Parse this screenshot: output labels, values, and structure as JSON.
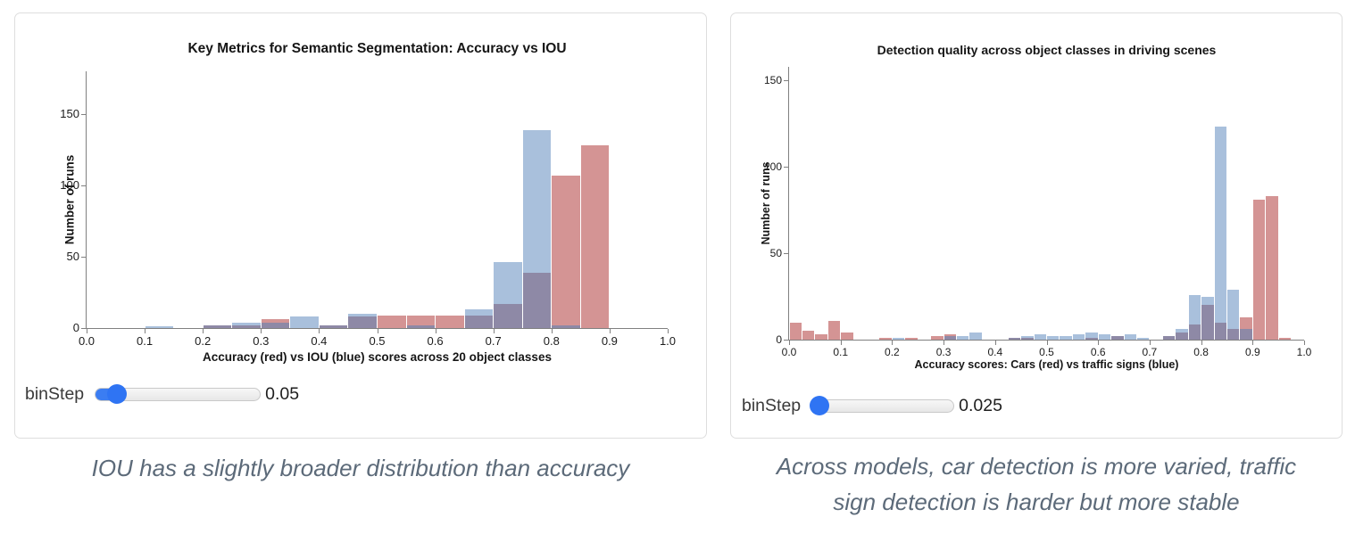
{
  "panels": [
    {
      "slider": {
        "label": "binStep",
        "value": "0.05",
        "fraction": 0.13
      },
      "caption_lines": {
        "0": "IOU has a slightly broader distribution than accuracy"
      }
    },
    {
      "slider": {
        "label": "binStep",
        "value": "0.025",
        "fraction": 0.05
      },
      "caption_lines": {
        "0": "Across models, car detection is more varied, traffic",
        "1": "sign detection is harder but more stable"
      }
    }
  ],
  "chart_data": [
    {
      "type": "histogram",
      "title": "Key Metrics for Semantic Segmentation: Accuracy vs IOU",
      "xlabel": "Accuracy (red) vs IOU (blue) scores across 20 object classes",
      "ylabel": "Number of runs",
      "bin_step": 0.05,
      "xlim": [
        0.0,
        1.0
      ],
      "ylim": [
        0,
        180
      ],
      "xticks": [
        0.0,
        0.1,
        0.2,
        0.3,
        0.4,
        0.5,
        0.6,
        0.7,
        0.8,
        0.9,
        1.0
      ],
      "yticks": [
        0,
        50,
        100,
        150
      ],
      "grid": false,
      "legend": "none",
      "overlap_color": "#8e89a6",
      "series": [
        {
          "name": "Accuracy",
          "color": "#d49494",
          "bins": [
            [
              0.2,
              2
            ],
            [
              0.25,
              2
            ],
            [
              0.3,
              6
            ],
            [
              0.4,
              2
            ],
            [
              0.45,
              8
            ],
            [
              0.5,
              9
            ],
            [
              0.55,
              9
            ],
            [
              0.6,
              9
            ],
            [
              0.65,
              9
            ],
            [
              0.7,
              17
            ],
            [
              0.75,
              39
            ],
            [
              0.8,
              107
            ],
            [
              0.85,
              128
            ]
          ]
        },
        {
          "name": "IOU",
          "color": "#a9c0dc",
          "bins": [
            [
              0.1,
              1
            ],
            [
              0.2,
              2
            ],
            [
              0.25,
              4
            ],
            [
              0.3,
              4
            ],
            [
              0.35,
              8
            ],
            [
              0.4,
              2
            ],
            [
              0.45,
              10
            ],
            [
              0.55,
              2
            ],
            [
              0.65,
              13
            ],
            [
              0.7,
              46
            ],
            [
              0.75,
              139
            ],
            [
              0.8,
              2
            ]
          ]
        }
      ]
    },
    {
      "type": "histogram",
      "title": "Detection quality across object classes in driving scenes",
      "xlabel": "Accuracy scores: Cars (red) vs traffic signs (blue)",
      "ylabel": "Number of runs",
      "bin_step": 0.025,
      "xlim": [
        0.0,
        1.0
      ],
      "ylim": [
        0,
        158
      ],
      "xticks": [
        0.0,
        0.1,
        0.2,
        0.3,
        0.4,
        0.5,
        0.6,
        0.7,
        0.8,
        0.9,
        1.0
      ],
      "yticks": [
        0,
        50,
        100,
        150
      ],
      "grid": false,
      "legend": "none",
      "overlap_color": "#8e89a6",
      "series": [
        {
          "name": "Cars",
          "color": "#d49494",
          "bins": [
            [
              0.0,
              10
            ],
            [
              0.025,
              5
            ],
            [
              0.05,
              3
            ],
            [
              0.075,
              11
            ],
            [
              0.1,
              4
            ],
            [
              0.175,
              1
            ],
            [
              0.225,
              1
            ],
            [
              0.275,
              2
            ],
            [
              0.3,
              3
            ],
            [
              0.425,
              1
            ],
            [
              0.45,
              1
            ],
            [
              0.575,
              1
            ],
            [
              0.625,
              2
            ],
            [
              0.725,
              2
            ],
            [
              0.75,
              4
            ],
            [
              0.775,
              9
            ],
            [
              0.8,
              20
            ],
            [
              0.825,
              10
            ],
            [
              0.85,
              6
            ],
            [
              0.875,
              13
            ],
            [
              0.9,
              81
            ],
            [
              0.925,
              83
            ],
            [
              0.95,
              1
            ]
          ]
        },
        {
          "name": "traffic signs",
          "color": "#a9c0dc",
          "bins": [
            [
              0.2,
              1
            ],
            [
              0.3,
              2
            ],
            [
              0.325,
              2
            ],
            [
              0.35,
              4
            ],
            [
              0.425,
              1
            ],
            [
              0.45,
              2
            ],
            [
              0.475,
              3
            ],
            [
              0.5,
              2
            ],
            [
              0.525,
              2
            ],
            [
              0.55,
              3
            ],
            [
              0.575,
              4
            ],
            [
              0.6,
              3
            ],
            [
              0.625,
              2
            ],
            [
              0.65,
              3
            ],
            [
              0.675,
              1
            ],
            [
              0.725,
              2
            ],
            [
              0.75,
              6
            ],
            [
              0.775,
              26
            ],
            [
              0.8,
              25
            ],
            [
              0.825,
              123
            ],
            [
              0.85,
              29
            ],
            [
              0.875,
              6
            ]
          ]
        }
      ]
    }
  ]
}
